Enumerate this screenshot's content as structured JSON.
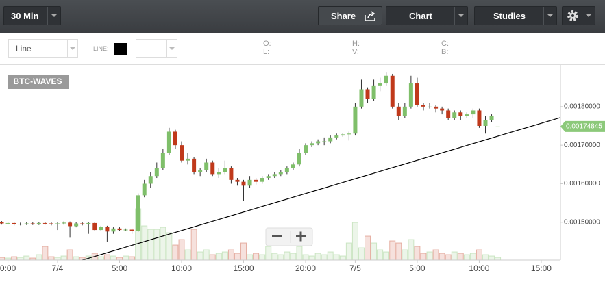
{
  "toolbar": {
    "interval": "30 Min",
    "share": "Share",
    "chart": "Chart",
    "studies": "Studies"
  },
  "chart_bar": {
    "chart_type": "Line",
    "line_label": "LINE:",
    "ohlc_labels": [
      "O:",
      "L:",
      "H:",
      "V:",
      "C:",
      "B:"
    ]
  },
  "chart_data": {
    "type": "candlestick",
    "symbol": "BTC-WAVES",
    "x": [
      -4.5,
      -4,
      -3.5,
      -3,
      -2.5,
      -2,
      -1.5,
      -1,
      -0.5,
      0,
      0.5,
      1,
      1.5,
      2,
      2.5,
      3,
      3.5,
      4,
      4.5,
      5,
      5.5,
      6,
      6.5,
      7,
      7.5,
      8,
      8.5,
      9,
      9.5,
      10,
      10.5,
      11,
      11.5,
      12,
      12.5,
      13,
      13.5,
      14,
      14.5,
      15,
      15.5,
      16,
      16.5,
      17,
      17.5,
      18,
      18.5,
      19,
      19.5,
      20,
      20.5,
      21,
      21.5,
      22,
      22.5,
      23,
      23.5,
      24,
      24.5,
      25,
      25.5,
      26,
      26.5,
      27,
      27.5,
      28,
      28.5,
      29,
      29.5,
      30,
      30.5,
      31,
      31.5,
      32,
      32.5,
      33,
      33.5,
      34,
      34.5,
      35,
      35.5
    ],
    "open": [
      0.0015,
      0.001497,
      0.001498,
      0.001495,
      0.001496,
      0.001497,
      0.001496,
      0.001498,
      0.001497,
      0.001495,
      0.001497,
      0.001499,
      0.00149,
      0.001497,
      0.001495,
      0.001498,
      0.00148,
      0.001488,
      0.001476,
      0.001484,
      0.00148,
      0.001481,
      0.001478,
      0.00157,
      0.0016,
      0.00162,
      0.00164,
      0.00168,
      0.001735,
      0.0017,
      0.00166,
      0.001665,
      0.00163,
      0.001635,
      0.001655,
      0.001625,
      0.00163,
      0.00164,
      0.00161,
      0.001605,
      0.001595,
      0.00161,
      0.001605,
      0.001615,
      0.00162,
      0.001625,
      0.00163,
      0.00164,
      0.00165,
      0.00168,
      0.0017,
      0.001705,
      0.00171,
      0.00171,
      0.00172,
      0.001725,
      0.001728,
      0.00173,
      0.0018,
      0.001845,
      0.00182,
      0.001855,
      0.00186,
      0.00188,
      0.0018,
      0.001775,
      0.0018,
      0.00186,
      0.001805,
      0.0018,
      0.0018,
      0.001795,
      0.00179,
      0.00177,
      0.001785,
      0.001775,
      0.00178,
      0.00179,
      0.00175,
      0.001765,
      0.00174845
    ],
    "high": [
      0.001503,
      0.001501,
      0.001501,
      0.001499,
      0.0015,
      0.0015,
      0.001501,
      0.001501,
      0.0015,
      0.0015,
      0.001502,
      0.001502,
      0.0015,
      0.0015,
      0.001501,
      0.001501,
      0.001491,
      0.001491,
      0.001487,
      0.001487,
      0.001484,
      0.001484,
      0.001575,
      0.00161,
      0.00163,
      0.001655,
      0.00169,
      0.001745,
      0.00174,
      0.00171,
      0.00168,
      0.00167,
      0.00164,
      0.001665,
      0.00166,
      0.00164,
      0.00166,
      0.001645,
      0.001615,
      0.00161,
      0.00162,
      0.001615,
      0.00162,
      0.001625,
      0.00163,
      0.001635,
      0.001645,
      0.001655,
      0.00169,
      0.001705,
      0.00171,
      0.001715,
      0.00172,
      0.001725,
      0.00173,
      0.001732,
      0.001735,
      0.00181,
      0.00187,
      0.00185,
      0.00187,
      0.001875,
      0.00189,
      0.001885,
      0.00181,
      0.00181,
      0.00188,
      0.001875,
      0.00181,
      0.00181,
      0.001805,
      0.0018,
      0.001795,
      0.00179,
      0.00179,
      0.001785,
      0.001795,
      0.001795,
      0.001775,
      0.00178,
      0.00174845
    ],
    "low": [
      0.001494,
      0.001494,
      0.001492,
      0.001492,
      0.001493,
      0.001493,
      0.001493,
      0.001494,
      0.001492,
      0.00148,
      0.001494,
      0.00146,
      0.001487,
      0.001492,
      0.00147,
      0.001477,
      0.001477,
      0.00145,
      0.00147,
      0.001477,
      0.001477,
      0.00147,
      0.001475,
      0.001565,
      0.00159,
      0.001615,
      0.001635,
      0.001675,
      0.00169,
      0.001655,
      0.00165,
      0.001625,
      0.00162,
      0.00163,
      0.00162,
      0.001615,
      0.001625,
      0.0016,
      0.001595,
      0.001555,
      0.00159,
      0.001598,
      0.0016,
      0.00161,
      0.001615,
      0.00162,
      0.001625,
      0.001635,
      0.001645,
      0.001675,
      0.001695,
      0.0017,
      0.0017,
      0.001705,
      0.001715,
      0.001722,
      0.001712,
      0.001725,
      0.001795,
      0.00181,
      0.001815,
      0.00184,
      0.001855,
      0.001795,
      0.001765,
      0.00177,
      0.001795,
      0.0018,
      0.00179,
      0.001795,
      0.001785,
      0.00178,
      0.001765,
      0.001765,
      0.001765,
      0.00177,
      0.00177,
      0.001745,
      0.00173,
      0.00176,
      0.00174845
    ],
    "close": [
      0.001497,
      0.001498,
      0.001495,
      0.001496,
      0.001497,
      0.001496,
      0.001498,
      0.001497,
      0.001495,
      0.001497,
      0.001499,
      0.00149,
      0.001497,
      0.001495,
      0.001498,
      0.00148,
      0.001488,
      0.001476,
      0.001484,
      0.00148,
      0.001481,
      0.001478,
      0.00157,
      0.0016,
      0.00162,
      0.00164,
      0.00168,
      0.001735,
      0.0017,
      0.00166,
      0.001665,
      0.00163,
      0.001635,
      0.001655,
      0.001625,
      0.00163,
      0.00164,
      0.00161,
      0.001605,
      0.001595,
      0.00161,
      0.001605,
      0.001615,
      0.00162,
      0.001625,
      0.00163,
      0.00164,
      0.00165,
      0.00168,
      0.0017,
      0.001705,
      0.00171,
      0.00171,
      0.00172,
      0.001725,
      0.001728,
      0.00173,
      0.0018,
      0.001845,
      0.00182,
      0.001855,
      0.00186,
      0.00188,
      0.0018,
      0.001775,
      0.0018,
      0.00186,
      0.001805,
      0.0018,
      0.0018,
      0.001795,
      0.00179,
      0.00177,
      0.001785,
      0.001775,
      0.00178,
      0.00179,
      0.00175,
      0.001765,
      0.001776,
      0.00174845
    ],
    "volume": [
      4,
      3,
      5,
      4,
      6,
      3,
      8,
      20,
      5,
      4,
      6,
      15,
      5,
      4,
      6,
      10,
      5,
      8,
      6,
      4,
      6,
      5,
      75,
      50,
      45,
      45,
      48,
      40,
      22,
      30,
      15,
      45,
      12,
      15,
      8,
      10,
      12,
      15,
      10,
      25,
      8,
      10,
      8,
      20,
      10,
      8,
      12,
      10,
      20,
      8,
      6,
      10,
      8,
      12,
      8,
      6,
      25,
      55,
      18,
      35,
      25,
      15,
      12,
      28,
      25,
      15,
      30,
      20,
      10,
      12,
      15,
      10,
      8,
      12,
      10,
      8,
      10,
      15,
      8,
      6,
      4
    ],
    "up_color": "#7fbf6a",
    "down_color": "#c0391b",
    "xlim": [
      -4.64,
      40.55
    ],
    "xticks": [
      {
        "value": -4,
        "label": "0:00"
      },
      {
        "value": 0,
        "label": "7/4"
      },
      {
        "value": 5,
        "label": "5:00"
      },
      {
        "value": 10,
        "label": "10:00"
      },
      {
        "value": 15,
        "label": "15:00"
      },
      {
        "value": 20,
        "label": "20:00"
      },
      {
        "value": 24,
        "label": "7/5"
      },
      {
        "value": 29,
        "label": "5:00"
      },
      {
        "value": 34,
        "label": "10:00"
      },
      {
        "value": 39,
        "label": "15:00"
      }
    ],
    "ylim": [
      0.001402,
      0.001908
    ],
    "yticks": [
      {
        "value": 0.0015,
        "label": "0.00150000"
      },
      {
        "value": 0.0016,
        "label": "0.00160000"
      },
      {
        "value": 0.0017,
        "label": "0.00170000"
      },
      {
        "value": 0.0018,
        "label": "0.00180000"
      }
    ],
    "last_price": 0.00174845,
    "last_price_color": "#8cc97a",
    "trendline": {
      "x": [
        2,
        40.55
      ],
      "y": [
        0.001402,
        0.0017717
      ]
    },
    "grid": false
  }
}
